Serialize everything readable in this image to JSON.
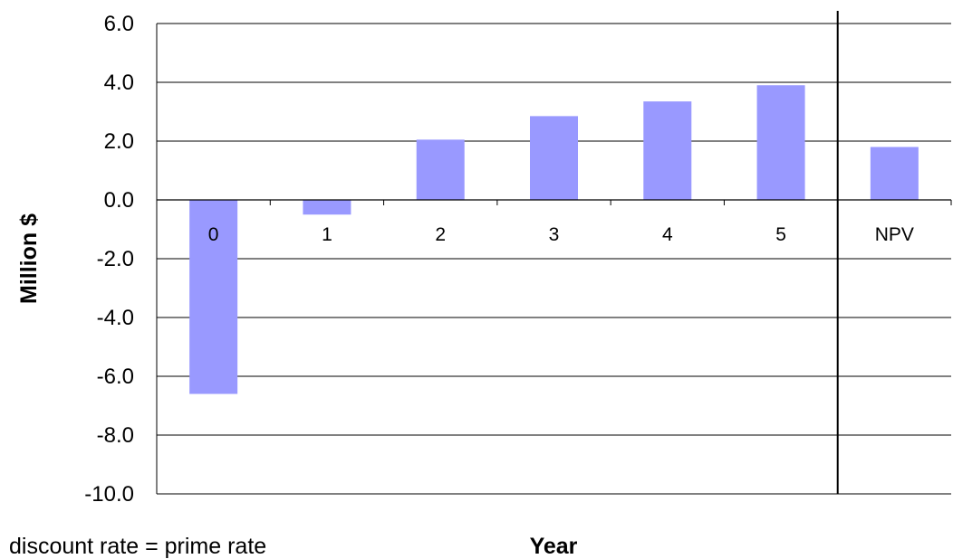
{
  "chart_data": {
    "type": "bar",
    "title": "",
    "xlabel": "Year",
    "ylabel": "Million $",
    "categories": [
      "0",
      "1",
      "2",
      "3",
      "4",
      "5",
      "NPV"
    ],
    "values": [
      -6.6,
      -0.5,
      2.05,
      2.85,
      3.35,
      3.9,
      1.8
    ],
    "ylim": [
      -10.0,
      6.0
    ],
    "yticks": [
      "6.0",
      "4.0",
      "2.0",
      "0.0",
      "-2.0",
      "-4.0",
      "-6.0",
      "-8.0",
      "-10.0"
    ],
    "grid": true,
    "legend": "none",
    "separator_before": "NPV",
    "annotation": "discount rate = prime rate",
    "bar_color": "#9999ff"
  }
}
